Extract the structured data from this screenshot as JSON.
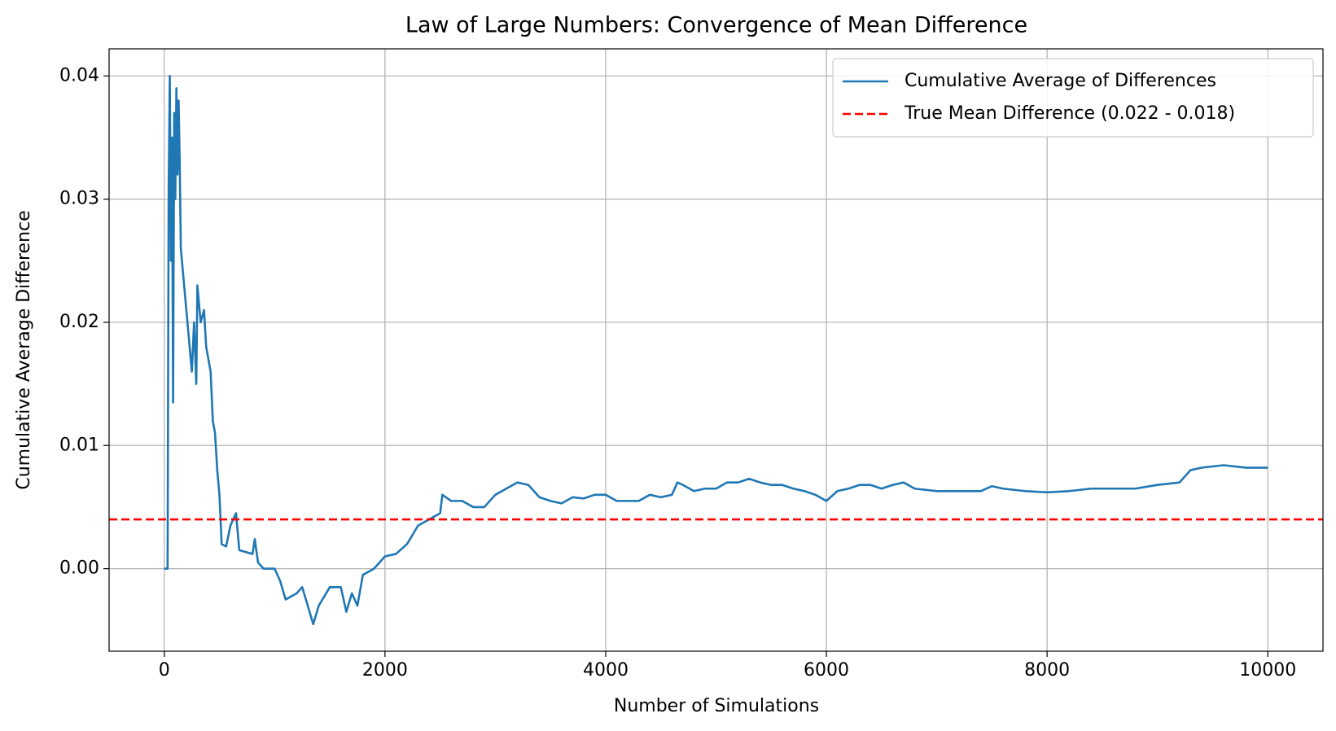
{
  "chart_data": {
    "type": "line",
    "title": "Law of Large Numbers: Convergence of Mean Difference",
    "xlabel": "Number of Simulations",
    "ylabel": "Cumulative Average Difference",
    "x": [
      0,
      20,
      30,
      40,
      50,
      60,
      70,
      80,
      90,
      100,
      110,
      120,
      130,
      140,
      150,
      200,
      250,
      270,
      290,
      300,
      330,
      360,
      380,
      420,
      440,
      460,
      480,
      500,
      520,
      560,
      600,
      650,
      680,
      800,
      820,
      850,
      900,
      1000,
      1050,
      1100,
      1200,
      1250,
      1300,
      1350,
      1400,
      1500,
      1600,
      1650,
      1700,
      1750,
      1800,
      1900,
      2000,
      2100,
      2200,
      2300,
      2400,
      2500,
      2520,
      2600,
      2700,
      2800,
      2900,
      3000,
      3100,
      3200,
      3300,
      3400,
      3500,
      3600,
      3700,
      3800,
      3900,
      4000,
      4100,
      4200,
      4300,
      4400,
      4500,
      4600,
      4650,
      4700,
      4800,
      4900,
      5000,
      5100,
      5200,
      5300,
      5400,
      5500,
      5600,
      5700,
      5800,
      5900,
      6000,
      6100,
      6200,
      6300,
      6400,
      6500,
      6600,
      6700,
      6800,
      7000,
      7200,
      7400,
      7500,
      7600,
      7800,
      8000,
      8200,
      8400,
      8600,
      8800,
      9000,
      9200,
      9300,
      9400,
      9600,
      9800,
      10000
    ],
    "series": [
      {
        "name": "Cumulative Average of Differences",
        "color": "#1f77b4",
        "values": [
          0,
          0,
          0,
          0.031,
          0.04,
          0.025,
          0.035,
          0.0135,
          0.037,
          0.03,
          0.039,
          0.032,
          0.038,
          0.033,
          0.026,
          0.021,
          0.016,
          0.02,
          0.015,
          0.023,
          0.02,
          0.021,
          0.018,
          0.016,
          0.012,
          0.011,
          0.008,
          0.006,
          0.002,
          0.0018,
          0.0035,
          0.0045,
          0.0015,
          0.0012,
          0.0024,
          0.0005,
          0,
          0,
          -0.001,
          -0.0025,
          -0.002,
          -0.0015,
          -0.003,
          -0.0045,
          -0.003,
          -0.0015,
          -0.0015,
          -0.0035,
          -0.002,
          -0.003,
          -0.0005,
          0,
          0.001,
          0.0012,
          0.002,
          0.0035,
          0.004,
          0.0045,
          0.006,
          0.0055,
          0.0055,
          0.005,
          0.005,
          0.006,
          0.0065,
          0.007,
          0.0068,
          0.0058,
          0.0055,
          0.0053,
          0.0058,
          0.0057,
          0.006,
          0.006,
          0.0055,
          0.0055,
          0.0055,
          0.006,
          0.0058,
          0.006,
          0.007,
          0.0068,
          0.0063,
          0.0065,
          0.0065,
          0.007,
          0.007,
          0.0073,
          0.007,
          0.0068,
          0.0068,
          0.0065,
          0.0063,
          0.006,
          0.0055,
          0.0063,
          0.0065,
          0.0068,
          0.0068,
          0.0065,
          0.0068,
          0.007,
          0.0065,
          0.0063,
          0.0063,
          0.0063,
          0.0067,
          0.0065,
          0.0063,
          0.0062,
          0.0063,
          0.0065,
          0.0065,
          0.0065,
          0.0068,
          0.007,
          0.008,
          0.0082,
          0.0084,
          0.0082,
          0.0082
        ]
      }
    ],
    "reference_line": {
      "name": "True Mean Difference (0.022 - 0.018)",
      "value": 0.004,
      "color": "#ff0000"
    },
    "xlim": [
      -500,
      10500
    ],
    "ylim": [
      -0.0067,
      0.0422
    ],
    "xticks": [
      0,
      2000,
      4000,
      6000,
      8000,
      10000
    ],
    "yticks": [
      {
        "value": 0,
        "label": "0.00"
      },
      0.01,
      0.02,
      0.03,
      0.04
    ],
    "grid": true,
    "legend": "upper right"
  }
}
